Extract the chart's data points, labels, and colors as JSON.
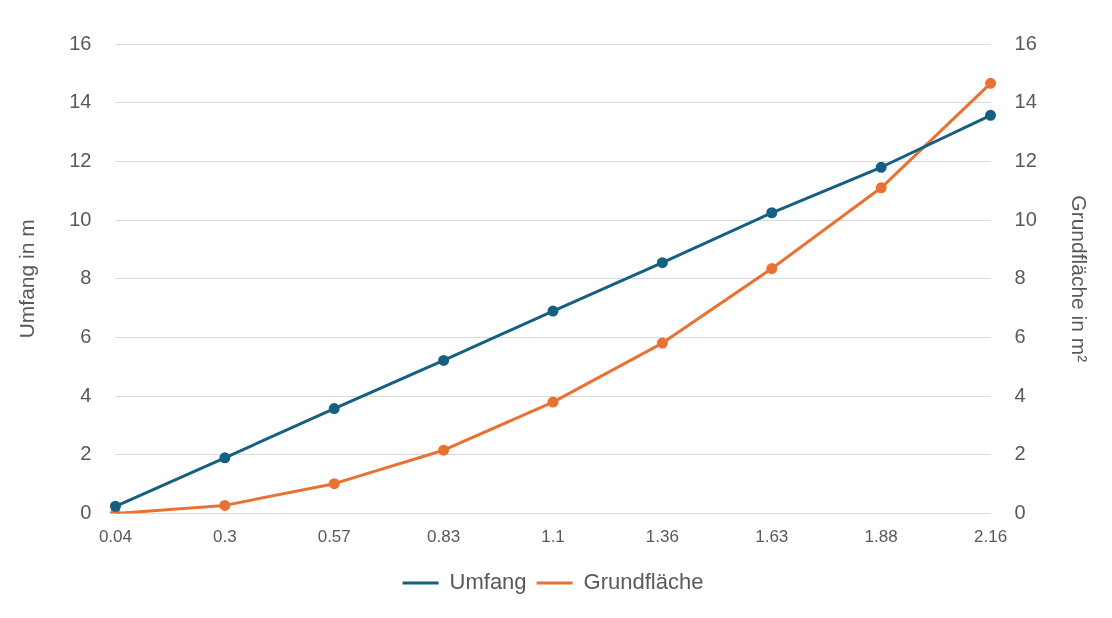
{
  "chart_data": {
    "type": "line",
    "categories": [
      "0.04",
      "0.3",
      "0.57",
      "0.83",
      "1.1",
      "1.36",
      "1.63",
      "1.88",
      "2.16"
    ],
    "series": [
      {
        "name": "Umfang",
        "color": "#156082",
        "values": [
          0.25,
          1.9,
          3.58,
          5.22,
          6.9,
          8.55,
          10.25,
          11.8,
          13.57
        ]
      },
      {
        "name": "Grundfläche",
        "color": "#e97132",
        "axis": "y2",
        "values": [
          0.0,
          0.28,
          1.02,
          2.16,
          3.8,
          5.81,
          8.35,
          11.1,
          14.66
        ]
      }
    ],
    "ylabel": "Umfang in m",
    "y2label": "Grundfläche in m²",
    "ylim": [
      0,
      16
    ],
    "yticks": [
      0,
      2,
      4,
      6,
      8,
      10,
      12,
      14,
      16
    ],
    "y2lim": [
      0,
      16
    ],
    "y2ticks": [
      0,
      2,
      4,
      6,
      8,
      10,
      12,
      14,
      16
    ],
    "grid": "y",
    "legend": "bottom",
    "marker": "circle",
    "line_style": "solid"
  }
}
